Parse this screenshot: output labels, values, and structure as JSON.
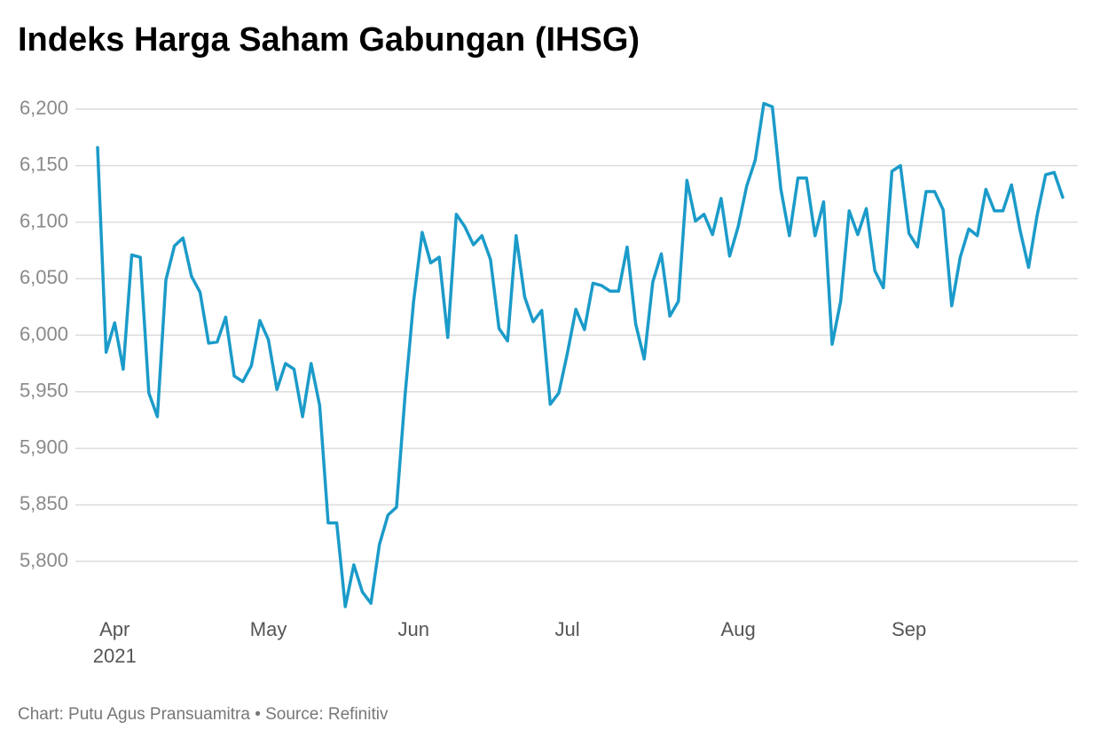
{
  "chart_data": {
    "type": "line",
    "title": "Indeks Harga Saham Gabungan (IHSG)",
    "source": "Chart: Putu Agus Pransuamitra • Source: Refinitiv",
    "year": "2021",
    "color": "#1b9bc9",
    "grid": true,
    "categories": [
      null,
      null,
      "Apr",
      null,
      null,
      null,
      null,
      null,
      null,
      null,
      null,
      null,
      null,
      null,
      null,
      null,
      null,
      null,
      null,
      null,
      "May",
      null,
      null,
      null,
      null,
      null,
      null,
      null,
      null,
      null,
      null,
      null,
      null,
      null,
      null,
      null,
      null,
      "Jun",
      null,
      null,
      null,
      null,
      null,
      null,
      null,
      null,
      null,
      null,
      null,
      null,
      null,
      null,
      null,
      null,
      null,
      "Jul",
      null,
      null,
      null,
      null,
      null,
      null,
      null,
      null,
      null,
      null,
      null,
      null,
      null,
      null,
      null,
      null,
      null,
      null,
      null,
      "Aug",
      null,
      null,
      null,
      null,
      null,
      null,
      null,
      null,
      null,
      null,
      null,
      null,
      null,
      null,
      null,
      null,
      null,
      null,
      null,
      "Sep",
      null,
      null,
      null,
      null,
      null,
      null,
      null,
      null,
      null,
      null,
      null,
      null,
      null,
      null,
      null,
      null,
      null,
      null
    ],
    "values": [
      6166,
      5985,
      6011,
      5970,
      6071,
      6069,
      5949,
      5928,
      6049,
      6079,
      6086,
      6052,
      6038,
      5993,
      5994,
      6016,
      5964,
      5959,
      5973,
      6013,
      5996,
      5952,
      5975,
      5970,
      5928,
      5975,
      5938,
      5834,
      5834,
      5760,
      5797,
      5773,
      5763,
      5815,
      5841,
      5848,
      5947,
      6030,
      6091,
      6064,
      6069,
      5998,
      6107,
      6096,
      6080,
      6088,
      6067,
      6006,
      5995,
      6088,
      6034,
      6012,
      6022,
      5939,
      5949,
      5984,
      6023,
      6005,
      6046,
      6044,
      6039,
      6039,
      6078,
      6010,
      5979,
      6047,
      6072,
      6017,
      6030,
      6137,
      6101,
      6107,
      6089,
      6121,
      6070,
      6096,
      6132,
      6155,
      6205,
      6202,
      6129,
      6088,
      6139,
      6139,
      6088,
      6118,
      5992,
      6030,
      6110,
      6089,
      6112,
      6057,
      6042,
      6145,
      6150,
      6090,
      6078,
      6127,
      6127,
      6111,
      6026,
      6069,
      6094,
      6088,
      6129,
      6110,
      6110,
      6133,
      6093,
      6060,
      6106,
      6142,
      6144,
      6122
    ],
    "ylim": [
      5751.4,
      6214.1
    ],
    "yticks": [
      {
        "value": 5800,
        "label": "5,800"
      },
      {
        "value": 5850,
        "label": "5,850"
      },
      {
        "value": 5900,
        "label": "5,900"
      },
      {
        "value": 5950,
        "label": "5,950"
      },
      {
        "value": 6000,
        "label": "6,000"
      },
      {
        "value": 6050,
        "label": "6,050"
      },
      {
        "value": 6100,
        "label": "6,100"
      },
      {
        "value": 6150,
        "label": "6,150"
      },
      {
        "value": 6200,
        "label": "6,200"
      }
    ]
  }
}
